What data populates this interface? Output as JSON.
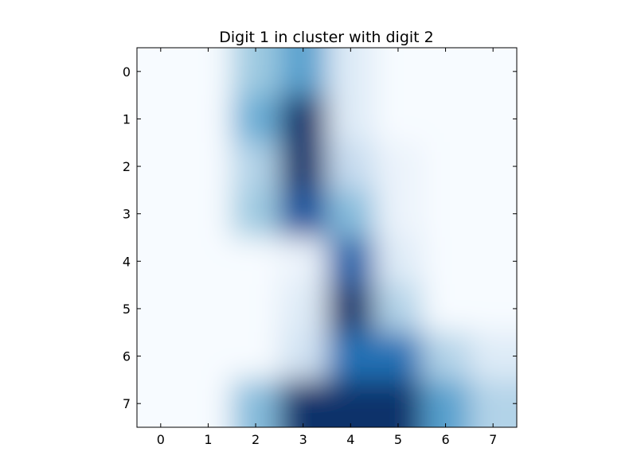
{
  "chart_data": {
    "type": "heatmap",
    "title": "Digit 1 in cluster with digit 2",
    "xlabel": "",
    "ylabel": "",
    "colormap": "Blues",
    "interpolation": "bicubic",
    "x_ticks": [
      0,
      1,
      2,
      3,
      4,
      5,
      6,
      7
    ],
    "y_ticks": [
      0,
      1,
      2,
      3,
      4,
      5,
      6,
      7
    ],
    "x_tick_labels": [
      "0",
      "1",
      "2",
      "3",
      "4",
      "5",
      "6",
      "7"
    ],
    "y_tick_labels": [
      "0",
      "1",
      "2",
      "3",
      "4",
      "5",
      "6",
      "7"
    ],
    "xlim": [
      -0.5,
      7.5
    ],
    "ylim": [
      7.5,
      -0.5
    ],
    "grid": false,
    "legend": "none",
    "values": [
      [
        0,
        0,
        6,
        9,
        2,
        0,
        0,
        0
      ],
      [
        0,
        0,
        8,
        16,
        2,
        0,
        0,
        0
      ],
      [
        0,
        0,
        5,
        16,
        4,
        1,
        0,
        0
      ],
      [
        0,
        0,
        6,
        14,
        7,
        1,
        0,
        0
      ],
      [
        0,
        0,
        0,
        1,
        13,
        2,
        0,
        0
      ],
      [
        0,
        0,
        0,
        2,
        16,
        5,
        0,
        0
      ],
      [
        0,
        0,
        0,
        3,
        12,
        12,
        5,
        2
      ],
      [
        0,
        0,
        7,
        16,
        16,
        16,
        9,
        5
      ]
    ],
    "vmin": 0,
    "vmax": 16
  }
}
